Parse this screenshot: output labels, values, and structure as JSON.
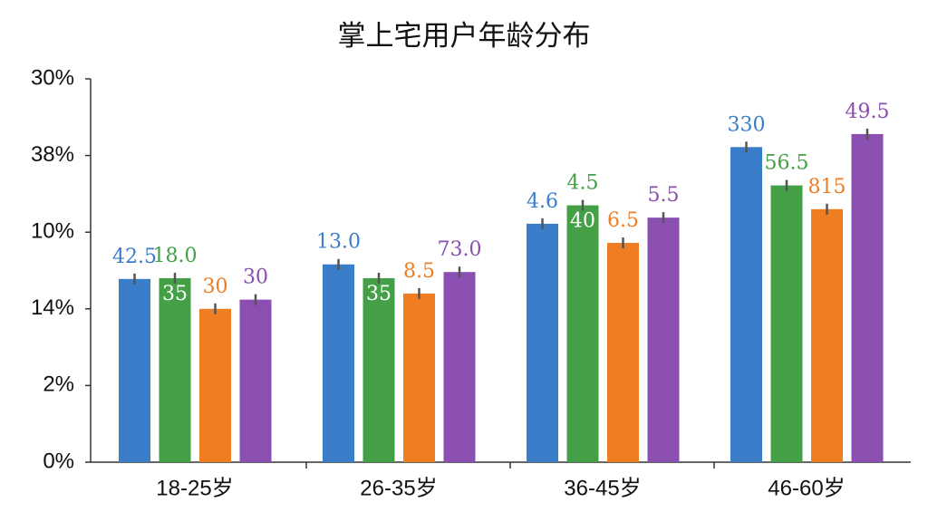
{
  "chart_data": {
    "type": "bar",
    "title": "掌上宅用户年龄分布",
    "categories": [
      "18-25岁",
      "26-35岁",
      "36-45岁",
      "46-60岁"
    ],
    "series": [
      {
        "color": "#3a7dc9",
        "values": [
          2.39,
          2.58,
          3.11,
          4.11
        ],
        "value_labels": [
          "42.5",
          "13.0",
          "4.6",
          "330"
        ]
      },
      {
        "color": "#43a047",
        "values": [
          2.4,
          2.4,
          3.35,
          3.61
        ],
        "value_labels": [
          "18.0",
          null,
          "4.5",
          "56.5"
        ],
        "inner_labels": [
          "35",
          "35",
          "40",
          null
        ]
      },
      {
        "color": "#ef7d22",
        "values": [
          2.0,
          2.2,
          2.86,
          3.3
        ],
        "value_labels": [
          "30",
          "8.5",
          "6.5",
          "815"
        ]
      },
      {
        "color": "#8a4fb0",
        "values": [
          2.12,
          2.48,
          3.19,
          4.28
        ],
        "value_labels": [
          "30",
          "73.0",
          "5.5",
          "49.5"
        ]
      }
    ],
    "ylim": [
      0,
      5
    ],
    "yticks": [
      {
        "value": 0,
        "label": "0%"
      },
      {
        "value": 1,
        "label": "2%"
      },
      {
        "value": 2,
        "label": "14%"
      },
      {
        "value": 3,
        "label": "10%"
      },
      {
        "value": 4,
        "label": "38%"
      },
      {
        "value": 5,
        "label": "30%"
      }
    ],
    "grid": false
  }
}
